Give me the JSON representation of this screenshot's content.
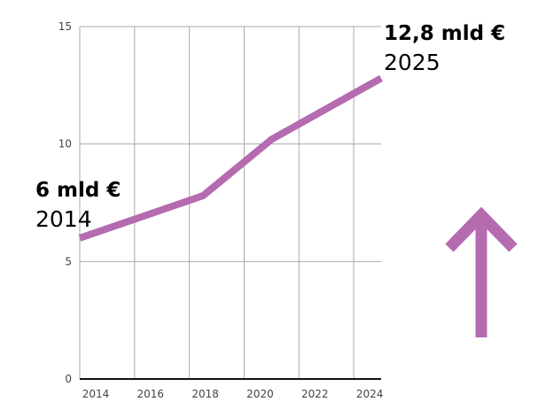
{
  "chart_data": {
    "type": "line",
    "title": "",
    "xlabel": "",
    "ylabel": "",
    "xlim": [
      2014,
      2025
    ],
    "ylim": [
      0,
      15
    ],
    "x_ticks": [
      "2014",
      "2016",
      "2018",
      "2020",
      "2022",
      "2024"
    ],
    "y_ticks": [
      "0",
      "5",
      "10",
      "15"
    ],
    "grid": true,
    "series": [
      {
        "color": "#b56bb0",
        "x": [
          2014,
          2016,
          2018.5,
          2021,
          2025
        ],
        "y": [
          6.0,
          6.8,
          7.8,
          10.2,
          12.8
        ]
      }
    ],
    "annotations": [
      {
        "value": "6 mld €",
        "year": "2014"
      },
      {
        "value": "12,8 mld €",
        "year": "2025"
      }
    ],
    "arrow": {
      "direction": "up",
      "icon": "arrow-up-icon",
      "color": "#b56bb0"
    }
  }
}
